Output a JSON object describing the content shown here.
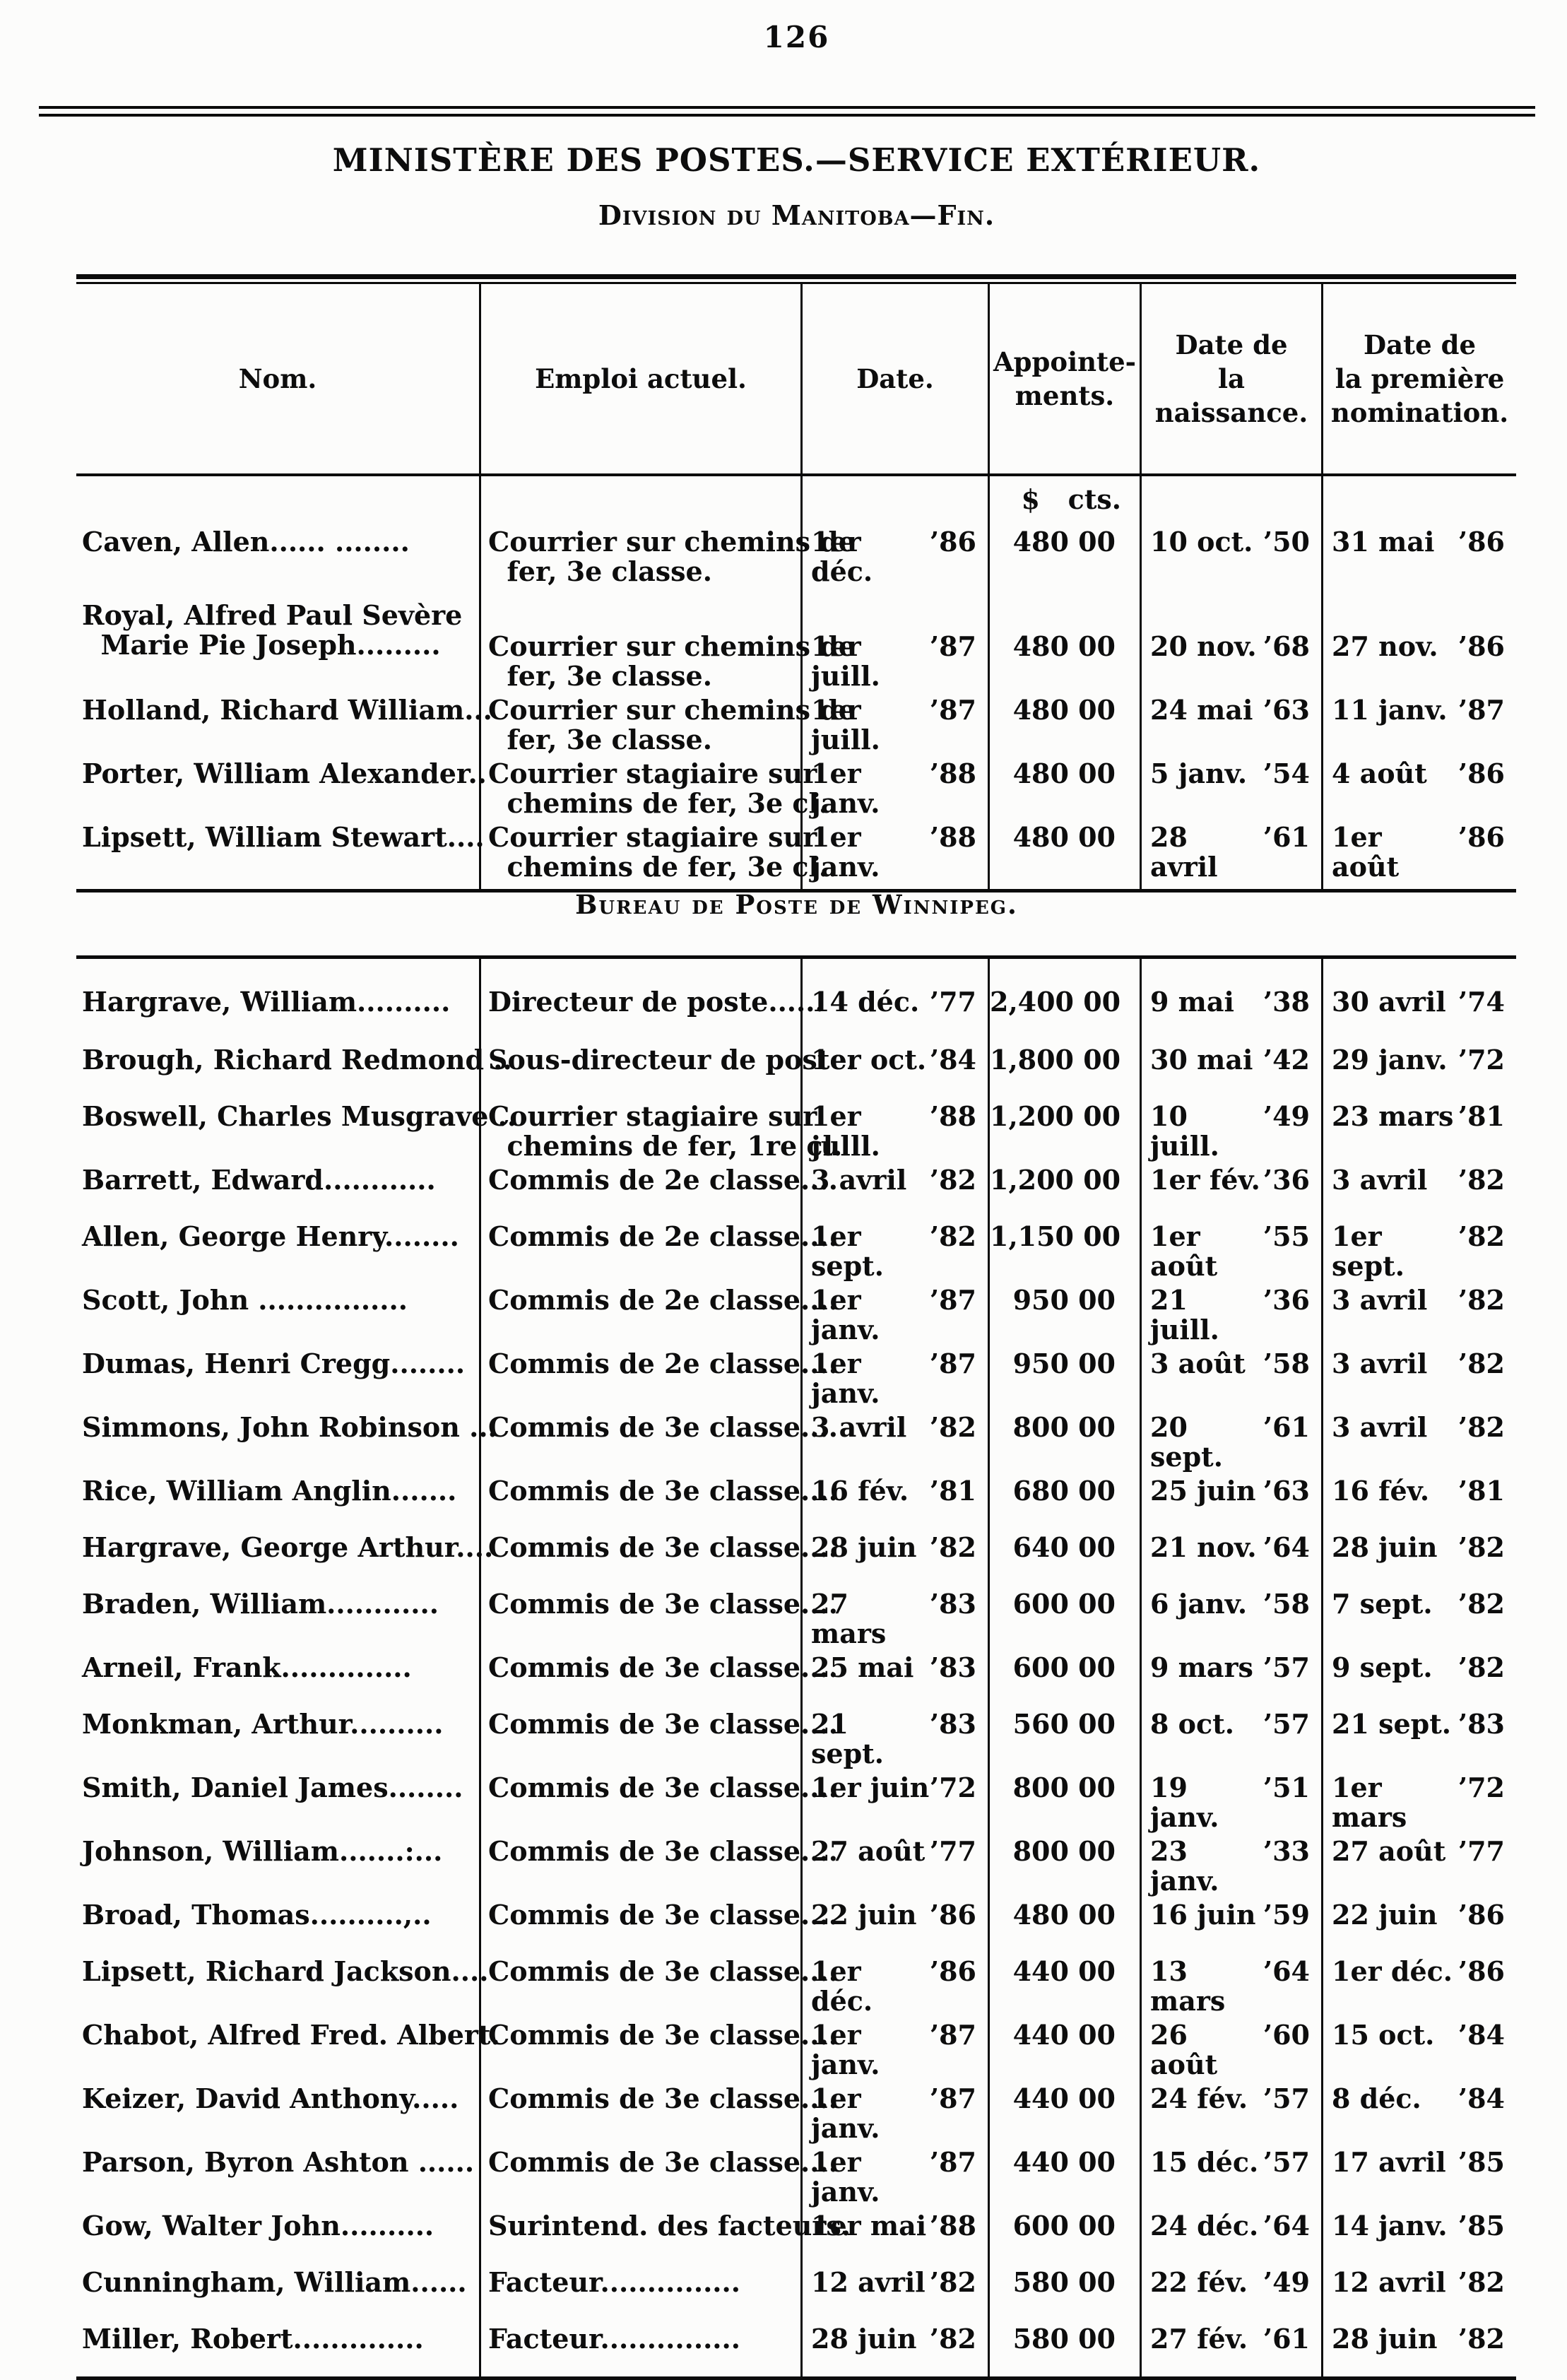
{
  "page_number": "126",
  "header": {
    "title": "MINISTÈRE DES POSTES.—SERVICE EXTÉRIEUR.",
    "subtitle": "Division du Manitoba—Fin."
  },
  "columns": {
    "nom": "Nom.",
    "emploi": "Emploi actuel.",
    "date": "Date.",
    "appointements": [
      "Appointe-",
      "ments."
    ],
    "naissance": [
      "Date de",
      "la naissance."
    ],
    "nomination": [
      "Date de",
      "la première",
      "nomination."
    ]
  },
  "currency_header": "$   cts.",
  "section1": {
    "rows": [
      {
        "name": "Caven, Allen...... ........",
        "emploi": [
          "Courrier sur chemins de",
          "  fer, 3e classe."
        ],
        "date": "1er déc. ’86",
        "amount": "480 00",
        "born": "10 oct. ’50",
        "first": "31 mai ’86"
      },
      {
        "name": [
          "Royal, Alfred Paul Sevère",
          "  Marie Pie Joseph........."
        ],
        "emploi": [
          "Courrier sur chemins de",
          "  fer, 3e classe."
        ],
        "date": "1er juill. ’87",
        "amount": "480 00",
        "born": "20 nov. ’68",
        "first": "27 nov. ’86"
      },
      {
        "name": "Holland, Richard William...",
        "emploi": [
          "Courrier sur chemins de",
          "  fer, 3e classe."
        ],
        "date": "1er juill. ’87",
        "amount": "480 00",
        "born": "24 mai ’63",
        "first": "11 janv. ’87"
      },
      {
        "name": "Porter, William Alexander..",
        "emploi": [
          "Courrier stagiaire sur",
          "  chemins de fer, 3e cl.."
        ],
        "date": "1er janv. ’88",
        "amount": "480 00",
        "born": "5 janv. ’54",
        "first": "4 août ’86"
      },
      {
        "name": "Lipsett, William Stewart....",
        "emploi": [
          "Courrier stagiaire sur",
          "  chemins de fer, 3e cl.."
        ],
        "date": "1er janv. ’88",
        "amount": "480 00",
        "born": "28 avril ’61",
        "first": "1er août ’86"
      }
    ]
  },
  "section2": {
    "heading": "Bureau de Poste de Winnipeg.",
    "rows": [
      {
        "name": "Hargrave, William..........",
        "emploi": "Directeur de poste......",
        "date": "14 déc. ’77",
        "amount": "2,400 00",
        "born": "9 mai ’38",
        "first": "30 avril ’74"
      },
      {
        "name": "Brough, Richard Redmond ..",
        "emploi": "Sous-directeur de poste.",
        "date": "1er oct. ’84",
        "amount": "1,800 00",
        "born": "30 mai ’42",
        "first": "29 janv. ’72"
      },
      {
        "name": "Boswell, Charles Musgrave ..",
        "emploi": [
          "Courrier stagiaire sur",
          "  chemins de fer, 1re cl."
        ],
        "date": "1er julll. ’88",
        "amount": "1,200 00",
        "born": "10 juill. ’49",
        "first": "23 mars ’81"
      },
      {
        "name": "Barrett, Edward............",
        "emploi": "Commis de 2e classe....",
        "date": "3 avril ’82",
        "amount": "1,200 00",
        "born": "1er fév. ’36",
        "first": "3 avril ’82"
      },
      {
        "name": "Allen, George Henry........",
        "emploi": "Commis de 2e classe....",
        "date": "1er sept. ’82",
        "amount": "1,150 00",
        "born": "1er août ’55",
        "first": "1er sept. ’82"
      },
      {
        "name": "Scott, John ................",
        "emploi": "Commis de 2e classe....",
        "date": "1er janv. ’87",
        "amount": "950 00",
        "born": "21 juill. ’36",
        "first": "3 avril ’82"
      },
      {
        "name": "Dumas, Henri Cregg........",
        "emploi": "Commis de 2e classe....",
        "date": "1er janv. ’87",
        "amount": "950 00",
        "born": "3 août ’58",
        "first": "3 avril ’82"
      },
      {
        "name": "Simmons, John Robinson ...",
        "emploi": "Commis de 3e classe....",
        "date": "3 avril ’82",
        "amount": "800 00",
        "born": "20 sept. ’61",
        "first": "3 avril ’82"
      },
      {
        "name": "Rice, William Anglin.......",
        "emploi": "Commis de 3e classe....",
        "date": "16 fév. ’81",
        "amount": "680 00",
        "born": "25 juin ’63",
        "first": "16 fév. ’81"
      },
      {
        "name": "Hargrave, George Arthur....",
        "emploi": "Commis de 3e classe....",
        "date": "28 juin ’82",
        "amount": "640 00",
        "born": "21 nov. ’64",
        "first": "28 juin ’82"
      },
      {
        "name": "Braden, William............",
        "emploi": "Commis de 3e classe....",
        "date": "27 mars ’83",
        "amount": "600 00",
        "born": "6 janv. ’58",
        "first": "7 sept. ’82"
      },
      {
        "name": "Arneil, Frank..............",
        "emploi": "Commis de 3e classe....",
        "date": "25 mai ’83",
        "amount": "600 00",
        "born": "9 mars ’57",
        "first": "9 sept. ’82"
      },
      {
        "name": "Monkman, Arthur..........",
        "emploi": "Commis de 3e classe....",
        "date": "21 sept. ’83",
        "amount": "560 00",
        "born": "8 oct. ’57",
        "first": "21 sept. ’83"
      },
      {
        "name": "Smith, Daniel James........",
        "emploi": "Commis de 3e classe....",
        "date": "1er juin ’72",
        "amount": "800 00",
        "born": "19 janv. ’51",
        "first": "1er mars ’72"
      },
      {
        "name": "Johnson, William.......:...",
        "emploi": "Commis de 3e classe....",
        "date": "27 août ’77",
        "amount": "800 00",
        "born": "23 janv. ’33",
        "first": "27 août ’77"
      },
      {
        "name": "Broad, Thomas..........,..",
        "emploi": "Commis de 3e classe....",
        "date": "22 juin ’86",
        "amount": "480 00",
        "born": "16 juin ’59",
        "first": "22 juin ’86"
      },
      {
        "name": "Lipsett, Richard Jackson....",
        "emploi": "Commis de 3e classe....",
        "date": "1er déc. ’86",
        "amount": "440 00",
        "born": "13 mars ’64",
        "first": "1er déc. ’86"
      },
      {
        "name": "Chabot, Alfred Fred. Albert.",
        "emploi": "Commis de 3e classe....",
        "date": "1er janv. ’87",
        "amount": "440 00",
        "born": "26 août ’60",
        "first": "15 oct. ’84"
      },
      {
        "name": "Keizer, David Anthony.....",
        "emploi": "Commis de 3e classe....",
        "date": "1er janv. ’87",
        "amount": "440 00",
        "born": "24 fév. ’57",
        "first": "8 déc. ’84"
      },
      {
        "name": "Parson, Byron Ashton ......",
        "emploi": "Commis de 3e classe....",
        "date": "1er janv. ’87",
        "amount": "440 00",
        "born": "15 déc. ’57",
        "first": "17 avril ’85"
      },
      {
        "name": "Gow, Walter John..........",
        "emploi": "Surintend. des facteurs.",
        "date": "1er mai ’88",
        "amount": "600 00",
        "born": "24 déc. ’64",
        "first": "14 janv. ’85"
      },
      {
        "name": "Cunningham, William......",
        "emploi": "Facteur...............",
        "date": "12 avril ’82",
        "amount": "580 00",
        "born": "22 fév. ’49",
        "first": "12 avril ’82"
      },
      {
        "name": "Miller, Robert..............",
        "emploi": "Facteur...............",
        "date": "28 juin ’82",
        "amount": "580 00",
        "born": "27 fév. ’61",
        "first": "28 juin ’82"
      }
    ]
  }
}
